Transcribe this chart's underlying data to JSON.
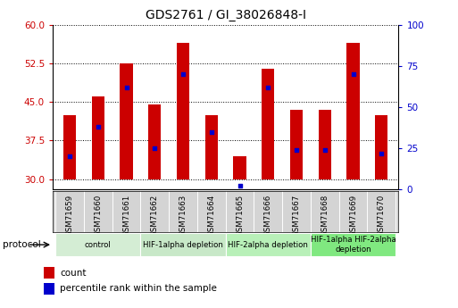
{
  "title": "GDS2761 / GI_38026848-I",
  "samples": [
    "GSM71659",
    "GSM71660",
    "GSM71661",
    "GSM71662",
    "GSM71663",
    "GSM71664",
    "GSM71665",
    "GSM71666",
    "GSM71667",
    "GSM71668",
    "GSM71669",
    "GSM71670"
  ],
  "bar_tops": [
    42.5,
    46.0,
    52.5,
    44.5,
    56.5,
    42.5,
    34.5,
    51.5,
    43.5,
    43.5,
    56.5,
    42.5
  ],
  "bar_bottom": 30,
  "percentile_rank": [
    20,
    38,
    62,
    25,
    70,
    35,
    2,
    62,
    24,
    24,
    70,
    22
  ],
  "ylim_left": [
    28,
    60
  ],
  "ylim_right": [
    0,
    100
  ],
  "yticks_left": [
    30,
    37.5,
    45,
    52.5,
    60
  ],
  "yticks_right": [
    0,
    25,
    50,
    75,
    100
  ],
  "bar_color": "#cc0000",
  "dot_color": "#0000cc",
  "protocol_groups": [
    {
      "label": "control",
      "start": 0,
      "end": 2,
      "color": "#d4edd4"
    },
    {
      "label": "HIF-1alpha depletion",
      "start": 3,
      "end": 5,
      "color": "#c8e8c8"
    },
    {
      "label": "HIF-2alpha depletion",
      "start": 6,
      "end": 8,
      "color": "#b8f0b8"
    },
    {
      "label": "HIF-1alpha HIF-2alpha\ndepletion",
      "start": 9,
      "end": 11,
      "color": "#80e880"
    }
  ],
  "left_tick_color": "#cc0000",
  "right_tick_color": "#0000cc",
  "legend_count_label": "count",
  "legend_pct_label": "percentile rank within the sample"
}
